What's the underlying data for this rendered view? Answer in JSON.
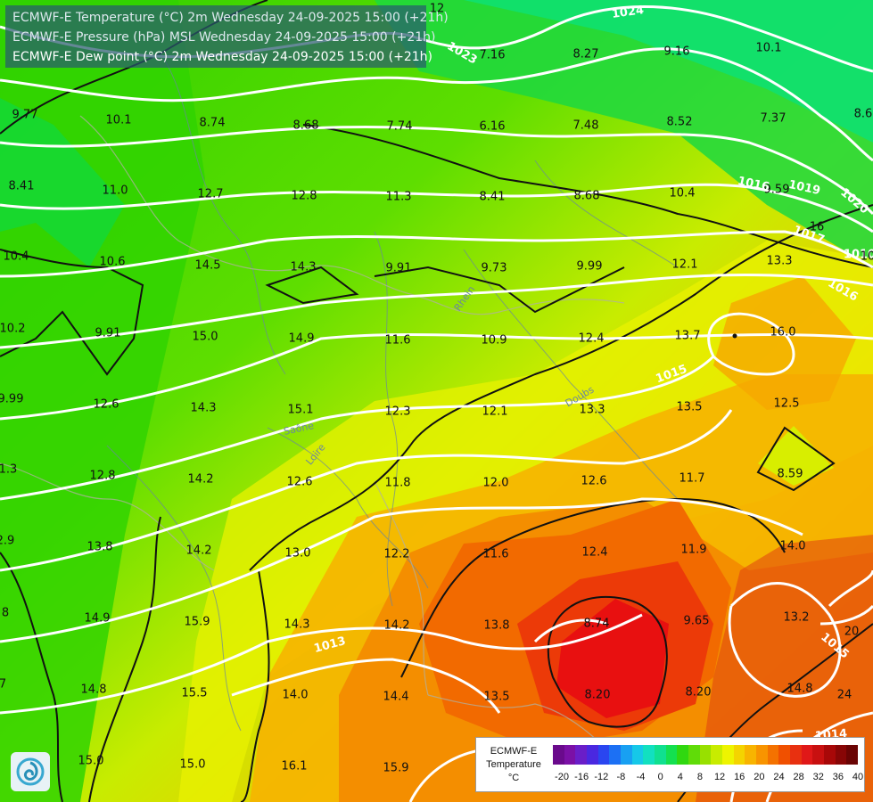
{
  "header": {
    "lines": [
      "ECMWF-E Temperature (°C) 2m Wednesday 24-09-2025 15:00 (+21h)",
      "ECMWF-E Pressure (hPa) MSL Wednesday 24-09-2025 15:00 (+21h)",
      "ECMWF-E Dew point (°C) 2m Wednesday 24-09-2025 15:00 (+21h)"
    ]
  },
  "map": {
    "dewpoint_values": [
      "9.77",
      "10.1",
      "8.74",
      "8.68",
      "7.74",
      "6.16",
      "7.48",
      "8.52",
      "7.37",
      "8.6",
      "7.16",
      "8.27",
      "9.16",
      "10.1",
      "8.41",
      "11.0",
      "12.7",
      "12.8",
      "11.3",
      "8.41",
      "8.68",
      "10.4",
      "9.59",
      "10.4",
      "10.6",
      "14.5",
      "14.3",
      "9.91",
      "9.73",
      "9.99",
      "12.1",
      "13.3",
      "10.2",
      "9.91",
      "15.0",
      "14.9",
      "11.6",
      "10.9",
      "12.4",
      "13.7",
      "16.0",
      "12.6",
      "14.3",
      "15.1",
      "12.3",
      "12.1",
      "13.3",
      "13.5",
      "12.5",
      "8.59",
      "12.8",
      "14.2",
      "12.6",
      "11.8",
      "12.0",
      "12.6",
      "11.7",
      "13.8",
      "14.2",
      "13.0",
      "12.2",
      "11.6",
      "12.4",
      "11.9",
      "14.0",
      "14.9",
      "15.9",
      "14.3",
      "14.2",
      "13.8",
      "8.74",
      "9.65",
      "13.2",
      "14.8",
      "15.5",
      "14.0",
      "14.4",
      "13.5",
      "8.20",
      "8.20",
      "14.8",
      "15.0",
      "15.0",
      "16.1",
      "15.9",
      "9.99",
      "1.3",
      "2.9",
      "8",
      "7"
    ],
    "isobar_labels": [
      "1024",
      "1023",
      "1019",
      "1017",
      "1016",
      "1015",
      "1014",
      "1013",
      "1010",
      "1020",
      "1015",
      "1016"
    ],
    "isotherm_labels": [
      "12",
      "16",
      "20",
      "24",
      "10"
    ],
    "place_names": [
      "Saône",
      "Loire",
      "Doubs",
      "Rhein"
    ]
  },
  "legend": {
    "title_lines": [
      "ECMWF-E",
      "Temperature",
      "°C"
    ],
    "ticks": [
      "-20",
      "-16",
      "-12",
      "-8",
      "-4",
      "0",
      "4",
      "8",
      "12",
      "16",
      "20",
      "24",
      "28",
      "32",
      "36",
      "40"
    ],
    "colors": [
      "#6a0a8c",
      "#7b10a6",
      "#6a1ec8",
      "#4a28e0",
      "#2a46f0",
      "#1c70f4",
      "#18a0f2",
      "#16c8e8",
      "#12e0c0",
      "#10e090",
      "#14e050",
      "#30d810",
      "#60dc08",
      "#98e000",
      "#c8ec00",
      "#eef400",
      "#f4d400",
      "#f8b400",
      "#f89400",
      "#f47200",
      "#f05000",
      "#e83010",
      "#e01818",
      "#c81010",
      "#a80808",
      "#880606",
      "#6a0404"
    ]
  }
}
